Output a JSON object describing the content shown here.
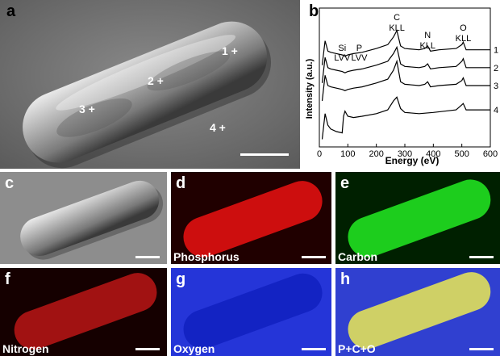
{
  "panels": {
    "a": {
      "label": "a",
      "points": [
        "1 +",
        "2 +",
        "3 +",
        "4 +"
      ]
    },
    "b": {
      "label": "b"
    },
    "c": {
      "label": "c"
    },
    "d": {
      "label": "d",
      "map_label": "Phosphorus",
      "color": "#e01010"
    },
    "e": {
      "label": "e",
      "map_label": "Carbon",
      "color": "#20e020"
    },
    "f": {
      "label": "f",
      "map_label": "Nitrogen",
      "color": "#d01818"
    },
    "g": {
      "label": "g",
      "map_label": "Oxygen",
      "color": "#1020c0"
    },
    "h": {
      "label": "h",
      "map_label": "P+C+O",
      "color": "#d8d860"
    }
  },
  "chart_data": {
    "type": "line",
    "xlabel": "Energy (eV)",
    "ylabel": "Intensity (a.u.)",
    "xlim": [
      0,
      600
    ],
    "x_ticks": [
      0,
      100,
      200,
      300,
      400,
      500,
      600
    ],
    "peak_labels": [
      {
        "line1": "Si",
        "line2": "LVV",
        "energy": 90
      },
      {
        "line1": "P",
        "line2": "LVV",
        "energy": 120
      },
      {
        "line1": "C",
        "line2": "KLL",
        "energy": 272
      },
      {
        "line1": "N",
        "line2": "KLL",
        "energy": 380
      },
      {
        "line1": "O",
        "line2": "KLL",
        "energy": 505
      }
    ],
    "series": [
      {
        "name": "1",
        "x": [
          10,
          20,
          30,
          40,
          60,
          80,
          90,
          100,
          120,
          150,
          200,
          240,
          260,
          272,
          285,
          300,
          350,
          370,
          380,
          390,
          420,
          480,
          500,
          505,
          515,
          530,
          600
        ],
        "y": [
          3.2,
          4.15,
          3.75,
          3.7,
          3.65,
          3.6,
          3.55,
          3.6,
          3.65,
          3.7,
          3.85,
          4.0,
          4.3,
          4.55,
          3.95,
          3.85,
          3.8,
          3.85,
          3.95,
          3.75,
          3.8,
          3.85,
          4.0,
          4.1,
          3.8,
          3.8,
          3.8
        ]
      },
      {
        "name": "2",
        "x": [
          10,
          20,
          30,
          40,
          60,
          80,
          90,
          100,
          120,
          150,
          200,
          240,
          260,
          272,
          285,
          300,
          350,
          370,
          380,
          390,
          420,
          480,
          500,
          505,
          515,
          530,
          600
        ],
        "y": [
          2.5,
          3.5,
          3.1,
          3.05,
          3.0,
          2.95,
          2.9,
          2.95,
          3.0,
          3.05,
          3.2,
          3.35,
          3.65,
          3.9,
          3.25,
          3.15,
          3.1,
          3.15,
          3.25,
          3.05,
          3.1,
          3.15,
          3.35,
          3.45,
          3.1,
          3.1,
          3.1
        ]
      },
      {
        "name": "3",
        "x": [
          10,
          20,
          30,
          40,
          60,
          80,
          90,
          100,
          120,
          150,
          200,
          240,
          260,
          272,
          285,
          300,
          350,
          370,
          380,
          390,
          420,
          480,
          500,
          505,
          515,
          530,
          600
        ],
        "y": [
          1.8,
          2.8,
          2.4,
          2.35,
          2.3,
          2.25,
          2.2,
          2.25,
          2.3,
          2.35,
          2.5,
          2.65,
          3.0,
          3.35,
          2.55,
          2.45,
          2.4,
          2.45,
          2.55,
          2.35,
          2.4,
          2.45,
          2.6,
          2.7,
          2.4,
          2.4,
          2.4
        ]
      },
      {
        "name": "4",
        "x": [
          10,
          20,
          30,
          40,
          60,
          80,
          85,
          90,
          100,
          120,
          150,
          200,
          240,
          260,
          272,
          285,
          300,
          350,
          400,
          480,
          500,
          505,
          515,
          530,
          600
        ],
        "y": [
          0.3,
          1.3,
          0.85,
          0.7,
          0.6,
          0.55,
          1.2,
          1.4,
          1.2,
          1.15,
          1.2,
          1.3,
          1.45,
          1.8,
          1.95,
          1.5,
          1.35,
          1.3,
          1.35,
          1.45,
          1.65,
          1.7,
          1.45,
          1.45,
          1.45
        ]
      }
    ]
  }
}
